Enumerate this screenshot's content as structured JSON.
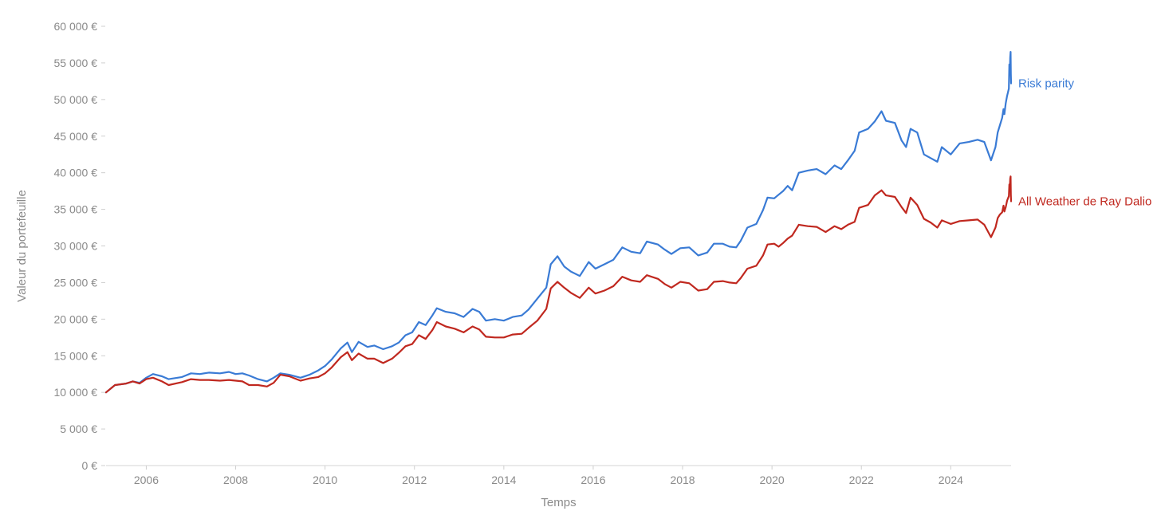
{
  "chart_data": {
    "type": "line",
    "title": "",
    "xlabel": "Temps",
    "ylabel": "Valeur du portefeuille",
    "xlim": [
      2005.1,
      2025.35
    ],
    "ylim": [
      0,
      60000
    ],
    "y_ticks": [
      0,
      5000,
      10000,
      15000,
      20000,
      25000,
      30000,
      35000,
      40000,
      45000,
      50000,
      55000,
      60000
    ],
    "y_tick_labels": [
      "0 €",
      "5 000 €",
      "10 000 €",
      "15 000 €",
      "20 000 €",
      "25 000 €",
      "30 000 €",
      "35 000 €",
      "40 000 €",
      "45 000 €",
      "50 000 €",
      "55 000 €",
      "60 000 €"
    ],
    "x_ticks": [
      2006,
      2008,
      2010,
      2012,
      2014,
      2016,
      2018,
      2020,
      2022,
      2024
    ],
    "x_tick_labels": [
      "2006",
      "2008",
      "2010",
      "2012",
      "2014",
      "2016",
      "2018",
      "2020",
      "2022",
      "2024"
    ],
    "grid": false,
    "legend": "end-of-line labels",
    "series": [
      {
        "name": "Risk parity",
        "color": "#3a7bd5",
        "points": [
          [
            2005.1,
            10000
          ],
          [
            2005.3,
            11000
          ],
          [
            2005.55,
            11200
          ],
          [
            2005.7,
            11500
          ],
          [
            2005.85,
            11300
          ],
          [
            2006.0,
            12000
          ],
          [
            2006.15,
            12500
          ],
          [
            2006.35,
            12200
          ],
          [
            2006.5,
            11800
          ],
          [
            2006.8,
            12100
          ],
          [
            2007.0,
            12600
          ],
          [
            2007.2,
            12500
          ],
          [
            2007.4,
            12700
          ],
          [
            2007.65,
            12600
          ],
          [
            2007.85,
            12800
          ],
          [
            2008.0,
            12500
          ],
          [
            2008.15,
            12600
          ],
          [
            2008.3,
            12300
          ],
          [
            2008.5,
            11800
          ],
          [
            2008.7,
            11500
          ],
          [
            2008.85,
            12000
          ],
          [
            2009.0,
            12600
          ],
          [
            2009.2,
            12400
          ],
          [
            2009.45,
            12000
          ],
          [
            2009.65,
            12400
          ],
          [
            2009.85,
            13000
          ],
          [
            2010.0,
            13600
          ],
          [
            2010.15,
            14500
          ],
          [
            2010.35,
            16000
          ],
          [
            2010.5,
            16800
          ],
          [
            2010.6,
            15500
          ],
          [
            2010.75,
            16900
          ],
          [
            2010.95,
            16200
          ],
          [
            2011.1,
            16400
          ],
          [
            2011.3,
            15900
          ],
          [
            2011.5,
            16300
          ],
          [
            2011.65,
            16800
          ],
          [
            2011.8,
            17800
          ],
          [
            2011.95,
            18200
          ],
          [
            2012.1,
            19600
          ],
          [
            2012.25,
            19200
          ],
          [
            2012.4,
            20500
          ],
          [
            2012.5,
            21500
          ],
          [
            2012.7,
            21000
          ],
          [
            2012.9,
            20800
          ],
          [
            2013.1,
            20300
          ],
          [
            2013.3,
            21400
          ],
          [
            2013.45,
            21000
          ],
          [
            2013.6,
            19800
          ],
          [
            2013.8,
            20000
          ],
          [
            2014.0,
            19800
          ],
          [
            2014.2,
            20300
          ],
          [
            2014.4,
            20500
          ],
          [
            2014.55,
            21300
          ],
          [
            2014.75,
            22800
          ],
          [
            2014.95,
            24300
          ],
          [
            2015.05,
            27500
          ],
          [
            2015.2,
            28600
          ],
          [
            2015.35,
            27200
          ],
          [
            2015.5,
            26500
          ],
          [
            2015.7,
            25900
          ],
          [
            2015.9,
            27800
          ],
          [
            2016.05,
            26900
          ],
          [
            2016.25,
            27500
          ],
          [
            2016.45,
            28100
          ],
          [
            2016.65,
            29800
          ],
          [
            2016.85,
            29200
          ],
          [
            2017.05,
            29000
          ],
          [
            2017.2,
            30600
          ],
          [
            2017.45,
            30200
          ],
          [
            2017.6,
            29500
          ],
          [
            2017.75,
            28900
          ],
          [
            2017.95,
            29700
          ],
          [
            2018.15,
            29800
          ],
          [
            2018.35,
            28700
          ],
          [
            2018.55,
            29100
          ],
          [
            2018.7,
            30300
          ],
          [
            2018.9,
            30300
          ],
          [
            2019.05,
            29900
          ],
          [
            2019.2,
            29800
          ],
          [
            2019.3,
            30700
          ],
          [
            2019.45,
            32500
          ],
          [
            2019.65,
            33000
          ],
          [
            2019.8,
            34900
          ],
          [
            2019.9,
            36600
          ],
          [
            2020.05,
            36500
          ],
          [
            2020.15,
            37000
          ],
          [
            2020.25,
            37500
          ],
          [
            2020.35,
            38200
          ],
          [
            2020.45,
            37600
          ],
          [
            2020.6,
            40000
          ],
          [
            2020.8,
            40300
          ],
          [
            2021.0,
            40500
          ],
          [
            2021.2,
            39800
          ],
          [
            2021.4,
            41000
          ],
          [
            2021.55,
            40500
          ],
          [
            2021.7,
            41700
          ],
          [
            2021.85,
            43000
          ],
          [
            2021.95,
            45500
          ],
          [
            2022.15,
            46000
          ],
          [
            2022.3,
            47000
          ],
          [
            2022.45,
            48400
          ],
          [
            2022.55,
            47100
          ],
          [
            2022.75,
            46800
          ],
          [
            2022.9,
            44400
          ],
          [
            2023.0,
            43500
          ],
          [
            2023.1,
            46000
          ],
          [
            2023.25,
            45500
          ],
          [
            2023.4,
            42500
          ],
          [
            2023.55,
            42000
          ],
          [
            2023.7,
            41500
          ],
          [
            2023.8,
            43500
          ],
          [
            2024.0,
            42500
          ],
          [
            2024.2,
            44000
          ],
          [
            2024.4,
            44200
          ],
          [
            2024.6,
            44500
          ],
          [
            2024.75,
            44200
          ],
          [
            2024.9,
            41700
          ],
          [
            2025.0,
            43500
          ],
          [
            2025.05,
            45500
          ],
          [
            2025.1,
            46500
          ],
          [
            2025.15,
            47500
          ],
          [
            2025.18,
            48700
          ],
          [
            2025.2,
            48000
          ],
          [
            2025.23,
            49500
          ],
          [
            2025.26,
            50500
          ],
          [
            2025.28,
            51000
          ],
          [
            2025.3,
            51500
          ],
          [
            2025.31,
            54800
          ],
          [
            2025.32,
            53500
          ],
          [
            2025.33,
            55800
          ],
          [
            2025.34,
            56500
          ],
          [
            2025.345,
            53500
          ],
          [
            2025.35,
            52200
          ]
        ]
      },
      {
        "name": "All Weather de Ray Dalio",
        "color": "#c0281f",
        "points": [
          [
            2005.1,
            10000
          ],
          [
            2005.3,
            11000
          ],
          [
            2005.55,
            11200
          ],
          [
            2005.7,
            11500
          ],
          [
            2005.85,
            11200
          ],
          [
            2006.0,
            11800
          ],
          [
            2006.15,
            12000
          ],
          [
            2006.35,
            11500
          ],
          [
            2006.5,
            11000
          ],
          [
            2006.8,
            11400
          ],
          [
            2007.0,
            11800
          ],
          [
            2007.2,
            11700
          ],
          [
            2007.4,
            11700
          ],
          [
            2007.65,
            11600
          ],
          [
            2007.85,
            11700
          ],
          [
            2008.0,
            11600
          ],
          [
            2008.15,
            11500
          ],
          [
            2008.3,
            11000
          ],
          [
            2008.5,
            11000
          ],
          [
            2008.7,
            10800
          ],
          [
            2008.85,
            11300
          ],
          [
            2009.0,
            12400
          ],
          [
            2009.2,
            12200
          ],
          [
            2009.45,
            11600
          ],
          [
            2009.65,
            11900
          ],
          [
            2009.85,
            12100
          ],
          [
            2010.0,
            12600
          ],
          [
            2010.15,
            13400
          ],
          [
            2010.35,
            14800
          ],
          [
            2010.5,
            15500
          ],
          [
            2010.6,
            14400
          ],
          [
            2010.75,
            15300
          ],
          [
            2010.95,
            14600
          ],
          [
            2011.1,
            14600
          ],
          [
            2011.3,
            14000
          ],
          [
            2011.5,
            14600
          ],
          [
            2011.65,
            15400
          ],
          [
            2011.8,
            16300
          ],
          [
            2011.95,
            16600
          ],
          [
            2012.1,
            17800
          ],
          [
            2012.25,
            17300
          ],
          [
            2012.4,
            18500
          ],
          [
            2012.5,
            19600
          ],
          [
            2012.7,
            19000
          ],
          [
            2012.9,
            18700
          ],
          [
            2013.1,
            18200
          ],
          [
            2013.3,
            19000
          ],
          [
            2013.45,
            18600
          ],
          [
            2013.6,
            17600
          ],
          [
            2013.8,
            17500
          ],
          [
            2014.0,
            17500
          ],
          [
            2014.2,
            17900
          ],
          [
            2014.4,
            18000
          ],
          [
            2014.55,
            18800
          ],
          [
            2014.75,
            19800
          ],
          [
            2014.95,
            21400
          ],
          [
            2015.05,
            24200
          ],
          [
            2015.2,
            25100
          ],
          [
            2015.35,
            24300
          ],
          [
            2015.5,
            23600
          ],
          [
            2015.7,
            22900
          ],
          [
            2015.9,
            24300
          ],
          [
            2016.05,
            23500
          ],
          [
            2016.25,
            23900
          ],
          [
            2016.45,
            24500
          ],
          [
            2016.65,
            25800
          ],
          [
            2016.85,
            25300
          ],
          [
            2017.05,
            25100
          ],
          [
            2017.2,
            26000
          ],
          [
            2017.45,
            25500
          ],
          [
            2017.6,
            24800
          ],
          [
            2017.75,
            24300
          ],
          [
            2017.95,
            25100
          ],
          [
            2018.15,
            24900
          ],
          [
            2018.35,
            23900
          ],
          [
            2018.55,
            24100
          ],
          [
            2018.7,
            25100
          ],
          [
            2018.9,
            25200
          ],
          [
            2019.05,
            25000
          ],
          [
            2019.2,
            24900
          ],
          [
            2019.3,
            25600
          ],
          [
            2019.45,
            26900
          ],
          [
            2019.65,
            27300
          ],
          [
            2019.8,
            28700
          ],
          [
            2019.9,
            30200
          ],
          [
            2020.05,
            30300
          ],
          [
            2020.15,
            29900
          ],
          [
            2020.25,
            30400
          ],
          [
            2020.35,
            31000
          ],
          [
            2020.45,
            31400
          ],
          [
            2020.6,
            32900
          ],
          [
            2020.8,
            32700
          ],
          [
            2021.0,
            32600
          ],
          [
            2021.2,
            31900
          ],
          [
            2021.4,
            32700
          ],
          [
            2021.55,
            32300
          ],
          [
            2021.7,
            32900
          ],
          [
            2021.85,
            33300
          ],
          [
            2021.95,
            35200
          ],
          [
            2022.15,
            35600
          ],
          [
            2022.3,
            36900
          ],
          [
            2022.45,
            37600
          ],
          [
            2022.55,
            36900
          ],
          [
            2022.75,
            36700
          ],
          [
            2022.9,
            35300
          ],
          [
            2023.0,
            34500
          ],
          [
            2023.1,
            36600
          ],
          [
            2023.25,
            35600
          ],
          [
            2023.4,
            33700
          ],
          [
            2023.55,
            33200
          ],
          [
            2023.7,
            32500
          ],
          [
            2023.8,
            33500
          ],
          [
            2024.0,
            33000
          ],
          [
            2024.2,
            33400
          ],
          [
            2024.4,
            33500
          ],
          [
            2024.6,
            33600
          ],
          [
            2024.75,
            32900
          ],
          [
            2024.9,
            31200
          ],
          [
            2025.0,
            32500
          ],
          [
            2025.05,
            33800
          ],
          [
            2025.1,
            34300
          ],
          [
            2025.15,
            34600
          ],
          [
            2025.18,
            35500
          ],
          [
            2025.2,
            34700
          ],
          [
            2025.23,
            35300
          ],
          [
            2025.26,
            36200
          ],
          [
            2025.28,
            36500
          ],
          [
            2025.3,
            36800
          ],
          [
            2025.31,
            38400
          ],
          [
            2025.32,
            37900
          ],
          [
            2025.33,
            39200
          ],
          [
            2025.34,
            39500
          ],
          [
            2025.345,
            37000
          ],
          [
            2025.35,
            36100
          ]
        ]
      }
    ]
  }
}
